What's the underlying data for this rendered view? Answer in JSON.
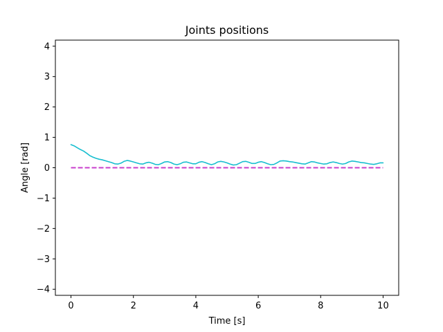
{
  "chart_data": {
    "type": "line",
    "title": "Joints positions",
    "xlabel": "Time [s]",
    "ylabel": "Angle [rad]",
    "xlim": [
      -0.5,
      10.5
    ],
    "ylim": [
      -4.2,
      4.2
    ],
    "xticks": [
      0,
      2,
      4,
      6,
      8,
      10
    ],
    "yticks": [
      4,
      3,
      2,
      1,
      0,
      -1,
      -2,
      -3,
      -4
    ],
    "xtick_labels": [
      "0",
      "2",
      "4",
      "6",
      "8",
      "10"
    ],
    "ytick_labels": [
      "4",
      "3",
      "2",
      "1",
      "0",
      "−1",
      "−2",
      "−3",
      "−4"
    ],
    "grid": false,
    "series": [
      {
        "style": "solid",
        "color": "#17becf",
        "x": [
          0.0,
          0.1,
          0.2,
          0.3,
          0.4,
          0.5,
          0.6,
          0.7,
          0.8,
          0.9,
          1.0,
          1.1,
          1.2,
          1.3,
          1.4,
          1.5,
          1.6,
          1.7,
          1.8,
          1.9,
          2.0,
          2.1,
          2.2,
          2.3,
          2.4,
          2.5,
          2.6,
          2.7,
          2.8,
          2.9,
          3.0,
          3.1,
          3.2,
          3.3,
          3.4,
          3.5,
          3.6,
          3.7,
          3.8,
          3.9,
          4.0,
          4.1,
          4.2,
          4.3,
          4.4,
          4.5,
          4.6,
          4.7,
          4.8,
          4.9,
          5.0,
          5.1,
          5.2,
          5.3,
          5.4,
          5.5,
          5.6,
          5.7,
          5.8,
          5.9,
          6.0,
          6.1,
          6.2,
          6.3,
          6.4,
          6.5,
          6.6,
          6.7,
          6.8,
          6.9,
          7.0,
          7.1,
          7.2,
          7.3,
          7.4,
          7.5,
          7.6,
          7.7,
          7.8,
          7.9,
          8.0,
          8.1,
          8.2,
          8.3,
          8.4,
          8.5,
          8.6,
          8.7,
          8.8,
          8.9,
          9.0,
          9.1,
          9.2,
          9.3,
          9.4,
          9.5,
          9.6,
          9.7,
          9.8,
          9.9,
          10.0
        ],
        "y": [
          0.76,
          0.72,
          0.66,
          0.6,
          0.55,
          0.48,
          0.4,
          0.35,
          0.31,
          0.28,
          0.26,
          0.23,
          0.2,
          0.17,
          0.13,
          0.12,
          0.15,
          0.21,
          0.24,
          0.22,
          0.19,
          0.16,
          0.13,
          0.12,
          0.16,
          0.18,
          0.15,
          0.11,
          0.1,
          0.14,
          0.19,
          0.2,
          0.17,
          0.12,
          0.1,
          0.13,
          0.18,
          0.19,
          0.16,
          0.13,
          0.13,
          0.18,
          0.2,
          0.17,
          0.13,
          0.1,
          0.13,
          0.19,
          0.21,
          0.19,
          0.16,
          0.12,
          0.09,
          0.1,
          0.15,
          0.2,
          0.21,
          0.18,
          0.14,
          0.14,
          0.18,
          0.2,
          0.17,
          0.13,
          0.1,
          0.11,
          0.16,
          0.22,
          0.23,
          0.22,
          0.2,
          0.19,
          0.17,
          0.15,
          0.13,
          0.12,
          0.16,
          0.2,
          0.19,
          0.16,
          0.14,
          0.12,
          0.13,
          0.17,
          0.19,
          0.17,
          0.14,
          0.12,
          0.14,
          0.19,
          0.22,
          0.21,
          0.19,
          0.17,
          0.16,
          0.14,
          0.12,
          0.11,
          0.13,
          0.16,
          0.16
        ]
      },
      {
        "style": "dashed",
        "color": "#c83dcc",
        "x": [
          0,
          10
        ],
        "y": [
          0,
          0
        ]
      }
    ]
  }
}
